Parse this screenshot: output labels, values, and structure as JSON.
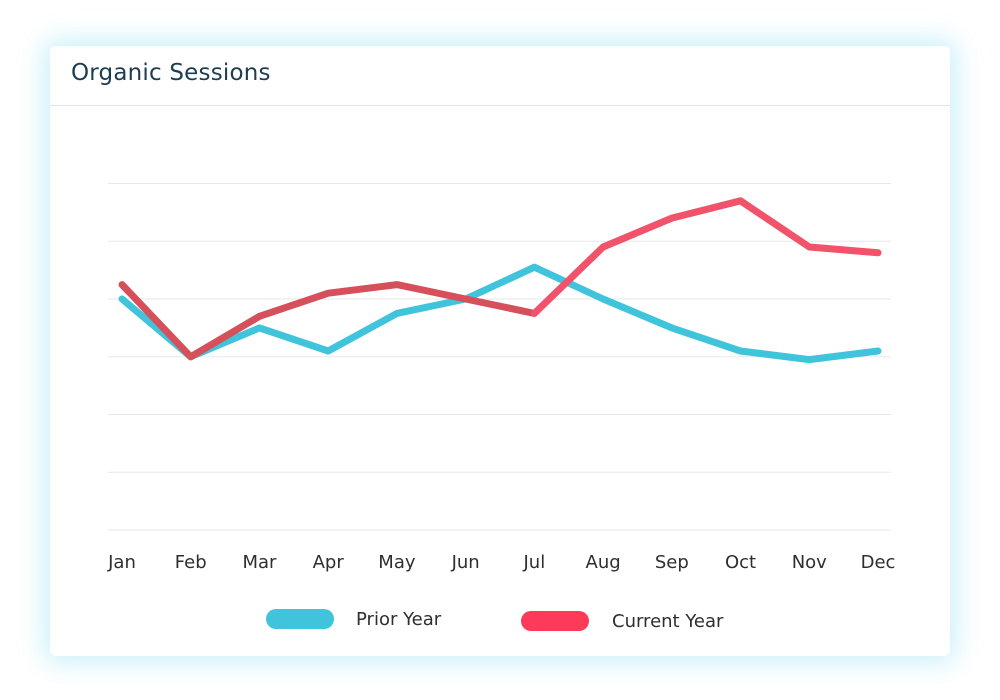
{
  "card": {
    "title": "Organic Sessions"
  },
  "chart_data": {
    "type": "line",
    "title": "Organic Sessions",
    "xlabel": "",
    "ylabel": "",
    "categories": [
      "Jan",
      "Feb",
      "Mar",
      "Apr",
      "May",
      "Jun",
      "Jul",
      "Aug",
      "Sep",
      "Oct",
      "Nov",
      "Dec"
    ],
    "ylim": [
      0,
      6
    ],
    "y_tick_labels_shown": false,
    "grid": true,
    "legend": "bottom",
    "series": [
      {
        "name": "Prior Year",
        "color": "#40c4dc",
        "values": [
          4.0,
          3.0,
          3.5,
          3.1,
          3.75,
          4.0,
          4.55,
          4.0,
          3.5,
          3.1,
          2.95,
          3.1
        ]
      },
      {
        "name": "Current Year",
        "color": "#f0536a",
        "overlap_color": "#d5505a",
        "values": [
          4.25,
          3.0,
          3.7,
          4.1,
          4.25,
          4.0,
          3.75,
          4.9,
          5.4,
          5.7,
          4.9,
          4.8
        ]
      }
    ]
  }
}
